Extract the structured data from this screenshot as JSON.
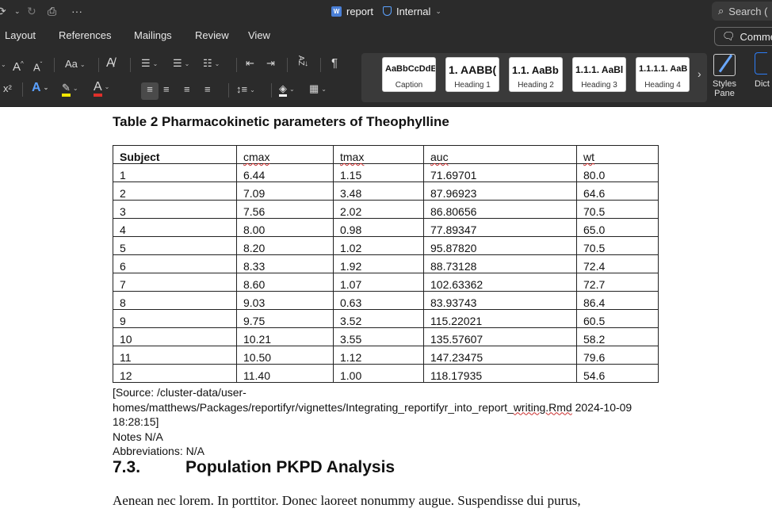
{
  "window": {
    "title": "report",
    "sensitivity": "Internal",
    "search_placeholder": "Search (",
    "icons": [
      "redo-icon",
      "print-icon",
      "more-icon"
    ]
  },
  "ribbon_tabs": [
    "Layout",
    "References",
    "Mailings",
    "Review",
    "View"
  ],
  "comments_label": "Comme",
  "font_group": {
    "grow_font": "A",
    "shrink_font": "A",
    "change_case": "Aa",
    "superscript": "x²",
    "font_color": "A",
    "text_effects": "A"
  },
  "paragraph_group": {
    "sort_label": "AZ",
    "pilcrow": "¶"
  },
  "styles": [
    {
      "sample": "AaBbCcDdE",
      "label": "Caption"
    },
    {
      "sample": "1. AABB(",
      "label": "Heading 1"
    },
    {
      "sample": "1.1. AaBb",
      "label": "Heading 2"
    },
    {
      "sample": "1.1.1. AaBl",
      "label": "Heading 3"
    },
    {
      "sample": "1.1.1.1. AaB",
      "label": "Heading 4"
    }
  ],
  "styles_pane_label_1": "Styles",
  "styles_pane_label_2": "Pane",
  "dictate_label": "Dict",
  "document": {
    "caption": "Table 2 Pharmacokinetic parameters of Theophylline",
    "table": {
      "headers": [
        "Subject",
        "cmax",
        "tmax",
        "auc",
        "wt"
      ],
      "rows": [
        [
          "1",
          "6.44",
          "1.15",
          "71.69701",
          "80.0"
        ],
        [
          "2",
          "7.09",
          "3.48",
          "87.96923",
          "64.6"
        ],
        [
          "3",
          "7.56",
          "2.02",
          "86.80656",
          "70.5"
        ],
        [
          "4",
          "8.00",
          "0.98",
          "77.89347",
          "65.0"
        ],
        [
          "5",
          "8.20",
          "1.02",
          "95.87820",
          "70.5"
        ],
        [
          "6",
          "8.33",
          "1.92",
          "88.73128",
          "72.4"
        ],
        [
          "7",
          "8.60",
          "1.07",
          "102.63362",
          "72.7"
        ],
        [
          "8",
          "9.03",
          "0.63",
          "83.93743",
          "86.4"
        ],
        [
          "9",
          "9.75",
          "3.52",
          "115.22021",
          "60.5"
        ],
        [
          "10",
          "10.21",
          "3.55",
          "135.57607",
          "58.2"
        ],
        [
          "11",
          "10.50",
          "1.12",
          "147.23475",
          "79.6"
        ],
        [
          "12",
          "11.40",
          "1.00",
          "118.17935",
          "54.6"
        ]
      ]
    },
    "source_line1": "[Source: /cluster-data/user-",
    "source_line2a": "homes/matthews/Packages/reportifyr/vignettes/Integrating_reportifyr_into_report_",
    "source_line2b": "writing.Rmd",
    "source_line2c": " 2024-10-09 18:28:15]",
    "notes": "Notes N/A",
    "abbreviations": "Abbreviations: N/A",
    "section_number": "7.3.",
    "section_title": "Population PKPD Analysis",
    "paragraph": "Aenean nec lorem. In porttitor. Donec laoreet nonummy augue. Suspendisse dui purus,"
  }
}
